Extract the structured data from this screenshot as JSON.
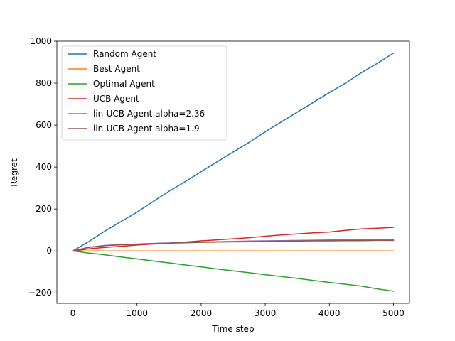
{
  "chart_data": {
    "type": "line",
    "title": "",
    "xlabel": "Time step",
    "ylabel": "Regret",
    "xlim": [
      -250,
      5250
    ],
    "ylim": [
      -250,
      1000
    ],
    "xticks": [
      0,
      1000,
      2000,
      3000,
      4000,
      5000
    ],
    "yticks": [
      -200,
      0,
      200,
      400,
      600,
      800,
      1000
    ],
    "xtick_labels": [
      "0",
      "1000",
      "2000",
      "3000",
      "4000",
      "5000"
    ],
    "ytick_labels": [
      "−200",
      "0",
      "200",
      "400",
      "600",
      "800",
      "1000"
    ],
    "grid": false,
    "legend_position": "top-left",
    "series": [
      {
        "name": "Random Agent",
        "color": "#1f77b4",
        "x": [
          0,
          250,
          500,
          750,
          1000,
          1250,
          1500,
          1750,
          2000,
          2250,
          2500,
          2750,
          3000,
          3250,
          3500,
          3750,
          4000,
          4250,
          4500,
          4750,
          5000
        ],
        "y": [
          0,
          45,
          95,
          140,
          185,
          235,
          285,
          330,
          378,
          425,
          472,
          518,
          568,
          615,
          662,
          708,
          755,
          800,
          850,
          895,
          943
        ]
      },
      {
        "name": "Best Agent",
        "color": "#ff7f0e",
        "x": [
          0,
          5000
        ],
        "y": [
          0,
          0
        ]
      },
      {
        "name": "Optimal Agent",
        "color": "#2ca02c",
        "x": [
          0,
          250,
          500,
          750,
          1000,
          1250,
          1500,
          1750,
          2000,
          2250,
          2500,
          2750,
          3000,
          3250,
          3500,
          3750,
          4000,
          4250,
          4500,
          4750,
          5000
        ],
        "y": [
          0,
          -10,
          -19,
          -29,
          -38,
          -48,
          -57,
          -67,
          -76,
          -86,
          -95,
          -104,
          -113,
          -122,
          -131,
          -141,
          -150,
          -159,
          -168,
          -181,
          -192
        ]
      },
      {
        "name": "UCB Agent",
        "color": "#d62728",
        "x": [
          0,
          250,
          500,
          750,
          1000,
          1250,
          1500,
          1750,
          2000,
          2250,
          2500,
          2750,
          3000,
          3250,
          3500,
          3750,
          4000,
          4250,
          4500,
          4750,
          5000
        ],
        "y": [
          0,
          10,
          17,
          22,
          28,
          33,
          37,
          42,
          48,
          53,
          58,
          63,
          70,
          76,
          81,
          86,
          90,
          98,
          105,
          108,
          112
        ]
      },
      {
        "name": "lin-UCB Agent alpha=2.36",
        "color": "#9467bd",
        "x": [
          0,
          250,
          500,
          750,
          1000,
          1250,
          1500,
          1750,
          2000,
          2250,
          2500,
          2750,
          3000,
          3250,
          3500,
          3750,
          4000,
          4250,
          4500,
          4750,
          5000
        ],
        "y": [
          0,
          18,
          26,
          30,
          33,
          36,
          38,
          40,
          42,
          44,
          45,
          47,
          48,
          49,
          50,
          51,
          52,
          52,
          53,
          53,
          53
        ]
      },
      {
        "name": "lin-UCB Agent alpha=1.9",
        "color": "#8c564b",
        "x": [
          0,
          250,
          500,
          750,
          1000,
          1250,
          1500,
          1750,
          2000,
          2250,
          2500,
          2750,
          3000,
          3250,
          3500,
          3750,
          4000,
          4250,
          4500,
          4750,
          5000
        ],
        "y": [
          0,
          17,
          25,
          29,
          32,
          35,
          37,
          39,
          41,
          42,
          43,
          44,
          45,
          46,
          47,
          48,
          48,
          49,
          49,
          50,
          50
        ]
      }
    ]
  }
}
